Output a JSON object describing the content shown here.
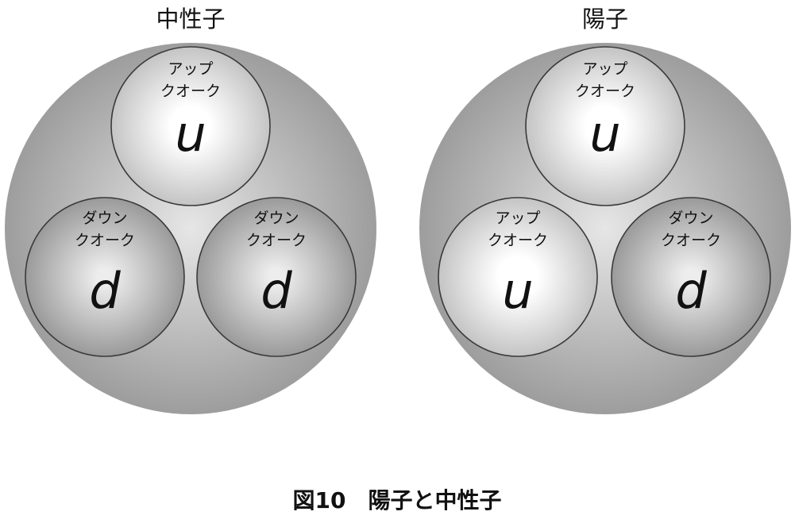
{
  "caption": "図10　陽子と中性子",
  "particles": [
    {
      "title": "中性子",
      "quarks": [
        {
          "name_line1": "アップ",
          "name_line2": "クオーク",
          "symbol": "u",
          "flavor": "up"
        },
        {
          "name_line1": "ダウン",
          "name_line2": "クオーク",
          "symbol": "d",
          "flavor": "down"
        },
        {
          "name_line1": "ダウン",
          "name_line2": "クオーク",
          "symbol": "d",
          "flavor": "down"
        }
      ]
    },
    {
      "title": "陽子",
      "quarks": [
        {
          "name_line1": "アップ",
          "name_line2": "クオーク",
          "symbol": "u",
          "flavor": "up"
        },
        {
          "name_line1": "アップ",
          "name_line2": "クオーク",
          "symbol": "u",
          "flavor": "up"
        },
        {
          "name_line1": "ダウン",
          "name_line2": "クオーク",
          "symbol": "d",
          "flavor": "down"
        }
      ]
    }
  ],
  "colors": {
    "outer_center": "#e6e6e6",
    "outer_edge": "#9d9d9d",
    "up_center": "#ffffff",
    "up_edge": "#c4c4c4",
    "down_center": "#ededed",
    "down_edge": "#9a9a9a",
    "stroke": "#3a3a3a"
  }
}
